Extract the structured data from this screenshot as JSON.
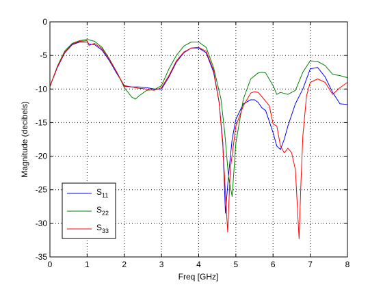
{
  "chart_data": {
    "type": "line",
    "title": "",
    "xlabel": "Freq [GHz]",
    "ylabel": "Magnitude (decibels)",
    "xlim": [
      0,
      8
    ],
    "ylim": [
      -35,
      0
    ],
    "xticks": [
      0,
      1,
      2,
      3,
      4,
      5,
      6,
      7,
      8
    ],
    "yticks": [
      0,
      -5,
      -10,
      -15,
      -20,
      -25,
      -30,
      -35
    ],
    "grid": true,
    "legend_position": "bottom-left",
    "series": [
      {
        "name": "S11",
        "name_base": "S",
        "name_sub": "11",
        "color": "#0000ff",
        "x": [
          0,
          0.2,
          0.4,
          0.6,
          0.8,
          1.0,
          1.05,
          1.2,
          1.4,
          1.6,
          1.8,
          2.0,
          2.2,
          2.4,
          2.6,
          2.8,
          3.0,
          3.2,
          3.4,
          3.6,
          3.8,
          4.0,
          4.2,
          4.4,
          4.55,
          4.65,
          4.72,
          4.8,
          4.9,
          5.0,
          5.2,
          5.4,
          5.5,
          5.6,
          5.7,
          5.8,
          6.0,
          6.1,
          6.2,
          6.3,
          6.4,
          6.6,
          6.8,
          7.0,
          7.2,
          7.4,
          7.6,
          7.8,
          8.0
        ],
        "y": [
          -9.6,
          -6.8,
          -4.6,
          -3.4,
          -3.0,
          -3.0,
          -3.3,
          -3.4,
          -4.2,
          -5.8,
          -7.7,
          -9.5,
          -9.7,
          -9.7,
          -9.8,
          -10.0,
          -10.0,
          -8.2,
          -6.0,
          -4.6,
          -3.9,
          -3.9,
          -4.6,
          -7.5,
          -12.0,
          -18.0,
          -28.5,
          -23.0,
          -17.5,
          -14.5,
          -12.2,
          -11.6,
          -11.6,
          -12.0,
          -12.8,
          -13.2,
          -16.5,
          -18.5,
          -19.0,
          -17.5,
          -15.5,
          -12.2,
          -10.0,
          -7.0,
          -6.8,
          -8.2,
          -10.5,
          -12.2,
          -12.3
        ]
      },
      {
        "name": "S22",
        "name_base": "S",
        "name_sub": "22",
        "color": "#008000",
        "x": [
          0,
          0.2,
          0.4,
          0.6,
          0.8,
          1.0,
          1.2,
          1.4,
          1.6,
          1.8,
          2.0,
          2.2,
          2.3,
          2.4,
          2.6,
          2.8,
          3.0,
          3.2,
          3.4,
          3.6,
          3.8,
          4.0,
          4.2,
          4.4,
          4.6,
          4.7,
          4.8,
          4.9,
          5.0,
          5.2,
          5.4,
          5.6,
          5.7,
          5.8,
          6.0,
          6.1,
          6.2,
          6.4,
          6.6,
          6.8,
          7.0,
          7.2,
          7.4,
          7.6,
          7.8,
          8.0
        ],
        "y": [
          -9.6,
          -6.6,
          -4.3,
          -3.2,
          -2.8,
          -2.6,
          -2.9,
          -3.8,
          -5.5,
          -7.5,
          -9.8,
          -11.2,
          -11.5,
          -11.0,
          -10.2,
          -10.1,
          -9.5,
          -7.0,
          -5.0,
          -3.6,
          -3.0,
          -3.0,
          -3.8,
          -6.8,
          -11.5,
          -16.5,
          -23.0,
          -26.0,
          -18.0,
          -11.5,
          -8.5,
          -7.6,
          -7.5,
          -7.6,
          -9.5,
          -10.8,
          -10.5,
          -10.8,
          -10.2,
          -7.5,
          -5.8,
          -5.9,
          -6.5,
          -7.8,
          -8.0,
          -8.3
        ]
      },
      {
        "name": "S33",
        "name_base": "S",
        "name_sub": "33",
        "color": "#ff0000",
        "x": [
          0,
          0.2,
          0.4,
          0.6,
          0.8,
          1.0,
          1.05,
          1.2,
          1.4,
          1.6,
          1.8,
          2.0,
          2.2,
          2.4,
          2.6,
          2.8,
          3.0,
          3.2,
          3.4,
          3.6,
          3.8,
          4.0,
          4.2,
          4.4,
          4.55,
          4.65,
          4.78,
          4.85,
          5.0,
          5.2,
          5.4,
          5.5,
          5.6,
          5.8,
          5.9,
          6.0,
          6.1,
          6.2,
          6.3,
          6.4,
          6.5,
          6.6,
          6.7,
          6.75,
          6.8,
          6.9,
          7.0,
          7.2,
          7.4,
          7.6,
          7.8,
          8.0
        ],
        "y": [
          -9.6,
          -6.7,
          -4.5,
          -3.3,
          -2.9,
          -2.8,
          -3.5,
          -3.2,
          -4.0,
          -5.6,
          -7.5,
          -9.6,
          -9.7,
          -9.9,
          -10.0,
          -10.2,
          -9.8,
          -8.0,
          -5.8,
          -4.5,
          -3.9,
          -3.8,
          -4.4,
          -7.2,
          -12.0,
          -18.5,
          -31.3,
          -22.0,
          -15.5,
          -12.5,
          -10.6,
          -10.4,
          -10.5,
          -11.8,
          -12.5,
          -15.2,
          -15.5,
          -18.5,
          -19.5,
          -18.8,
          -19.5,
          -22.0,
          -32.3,
          -24.0,
          -17.0,
          -11.0,
          -9.0,
          -8.5,
          -9.0,
          -10.8,
          -9.8,
          -9.0
        ]
      }
    ]
  }
}
